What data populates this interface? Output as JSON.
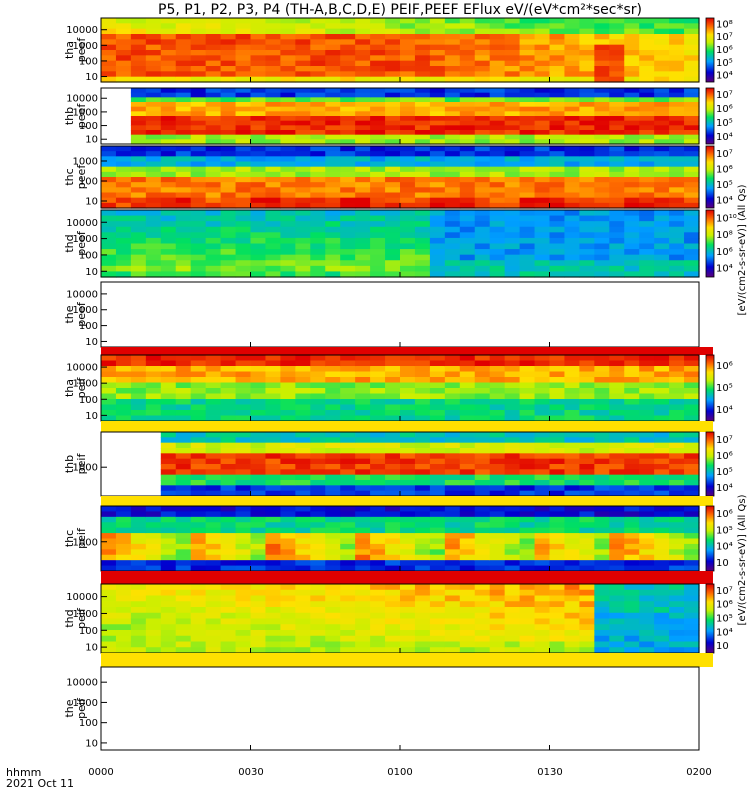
{
  "chart_data": {
    "type": "heatmap",
    "title": "P5, P1, P2, P3, P4 (TH-A,B,C,D,E) PEIF,PEEF EFlux eV/(eV*cm²*sec*sr)",
    "x_ticks": [
      "0000",
      "0030",
      "0100",
      "0130",
      "0200"
    ],
    "x_range": [
      "00:00",
      "02:00"
    ],
    "x_corner_label": "hhmm",
    "date_label": "2021 Oct 11",
    "colorbar_labels": {
      "electron": "[eV/(cm2-s-sr-eV)] (All Qs)",
      "ion": "[eV/(cm2-s-sr-eV)] (All Qs)"
    },
    "panels": [
      {
        "probe": "tha",
        "species": "peef",
        "y_ticks": [
          "10",
          "100",
          "1000",
          "10000"
        ],
        "colorbar_ticks": [
          "10⁴",
          "10⁵",
          "10⁶",
          "10⁷",
          "10⁸"
        ]
      },
      {
        "probe": "thb",
        "species": "peef",
        "y_ticks": [
          "10",
          "100",
          "1000",
          "10000"
        ],
        "colorbar_ticks": [
          "10⁴",
          "10⁵",
          "10⁶",
          "10⁷"
        ]
      },
      {
        "probe": "thc",
        "species": "peef",
        "y_ticks": [
          "10",
          "100",
          "1000"
        ],
        "colorbar_ticks": [
          "10⁴",
          "10⁵",
          "10⁶",
          "10⁷"
        ]
      },
      {
        "probe": "thd",
        "species": "peef",
        "y_ticks": [
          "10",
          "100",
          "1000",
          "10000"
        ],
        "colorbar_ticks": [
          "10⁴",
          "10⁶",
          "10⁸",
          "10¹⁰"
        ]
      },
      {
        "probe": "the",
        "species": "peef",
        "y_ticks": [
          "10",
          "100",
          "1000",
          "10000"
        ],
        "colorbar_ticks": []
      },
      {
        "probe": "tha",
        "species": "peif",
        "y_ticks": [
          "10",
          "100",
          "1000",
          "10000"
        ],
        "colorbar_ticks": [
          "10⁴",
          "10⁵",
          "10⁶"
        ]
      },
      {
        "probe": "thb",
        "species": "peif",
        "y_ticks": [
          "1000"
        ],
        "colorbar_ticks": [
          "10⁴",
          "10⁵",
          "10⁶",
          "10⁷"
        ]
      },
      {
        "probe": "thc",
        "species": "peif",
        "y_ticks": [
          "1000"
        ],
        "colorbar_ticks": [
          "10⁳",
          "10⁴",
          "10⁵",
          "10⁶"
        ]
      },
      {
        "probe": "thd",
        "species": "peif",
        "y_ticks": [
          "10",
          "100",
          "1000",
          "10000"
        ],
        "colorbar_ticks": [
          "10⁳",
          "10⁴",
          "10⁵",
          "10⁶",
          "10⁷"
        ]
      },
      {
        "probe": "the",
        "species": "peif",
        "y_ticks": [
          "10",
          "100",
          "1000",
          "10000"
        ],
        "colorbar_ticks": []
      }
    ]
  }
}
